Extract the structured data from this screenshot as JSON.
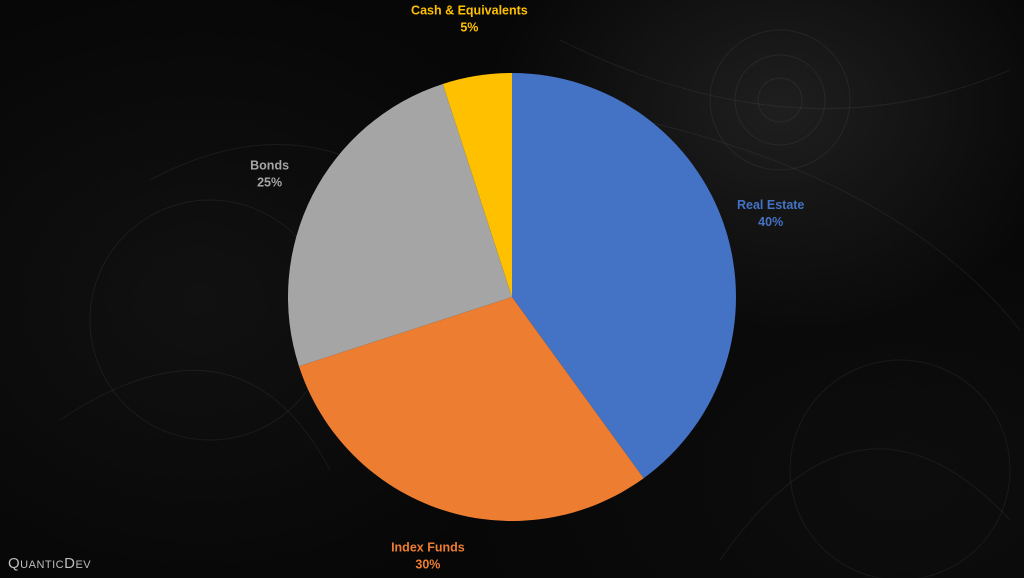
{
  "chart_data": {
    "type": "pie",
    "title": "",
    "start_angle_deg": 0,
    "direction": "clockwise",
    "slices": [
      {
        "label": "Real Estate",
        "value": 40,
        "value_label": "40%",
        "color": "#4472C4"
      },
      {
        "label": "Index Funds",
        "value": 30,
        "value_label": "30%",
        "color": "#ED7D31"
      },
      {
        "label": "Bonds",
        "value": 25,
        "value_label": "25%",
        "color": "#A5A5A5"
      },
      {
        "label": "Cash & Equivalents",
        "value": 5,
        "value_label": "5%",
        "color": "#FFC000"
      }
    ],
    "legend": "none"
  },
  "branding": {
    "text": "QuanticDev"
  }
}
